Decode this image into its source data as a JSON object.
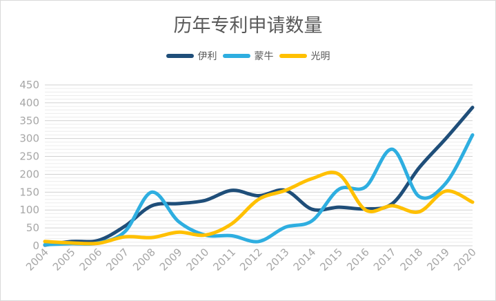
{
  "chart_data": {
    "type": "line",
    "title": "历年专利申请数量",
    "categories": [
      "2004",
      "2005",
      "2006",
      "2007",
      "2008",
      "2009",
      "2010",
      "2011",
      "2012",
      "2013",
      "2014",
      "2015",
      "2016",
      "2017",
      "2018",
      "2019",
      "2020"
    ],
    "ylim": [
      0,
      450
    ],
    "yticks": [
      0,
      50,
      100,
      150,
      200,
      250,
      300,
      350,
      400,
      450
    ],
    "grid": true,
    "legend_position": "top",
    "series": [
      {
        "name": "伊利",
        "color": "#1f4e79",
        "values": [
          2,
          12,
          15,
          55,
          112,
          118,
          127,
          155,
          140,
          155,
          102,
          108,
          103,
          118,
          218,
          300,
          387
        ]
      },
      {
        "name": "蒙牛",
        "color": "#2eaee0",
        "values": [
          3,
          6,
          8,
          40,
          150,
          68,
          30,
          28,
          12,
          52,
          70,
          158,
          165,
          270,
          138,
          175,
          310
        ]
      },
      {
        "name": "光明",
        "color": "#ffc000",
        "values": [
          12,
          8,
          7,
          25,
          23,
          38,
          30,
          62,
          130,
          155,
          188,
          200,
          100,
          112,
          95,
          153,
          122
        ]
      }
    ]
  }
}
